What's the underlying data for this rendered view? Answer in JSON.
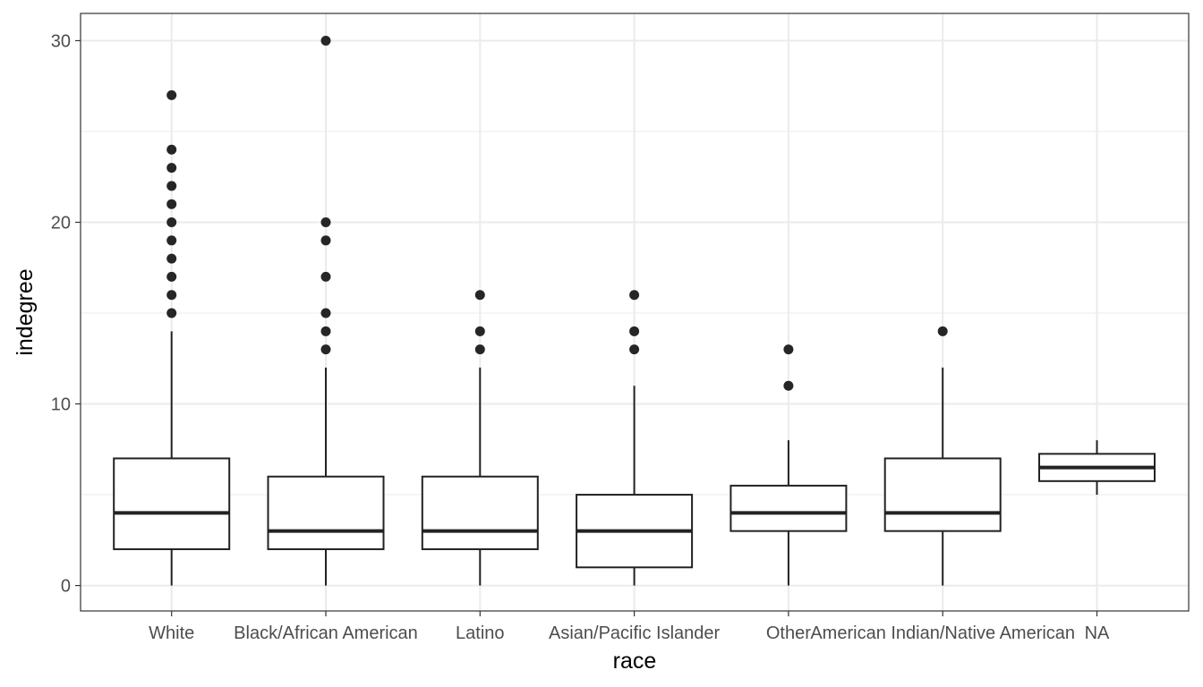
{
  "chart_data": {
    "type": "boxplot",
    "title": "",
    "xlabel": "race",
    "ylabel": "indegree",
    "ylim": [
      -1.4,
      31.5
    ],
    "y_ticks": [
      0,
      10,
      20,
      30
    ],
    "y_minor_ticks": [
      5,
      15,
      25
    ],
    "grid": true,
    "legend": "none",
    "colors": {
      "box_stroke": "#222222",
      "outlier": "#262626",
      "grid": "#ebebeb",
      "panel_border": "#333333"
    },
    "categories": [
      "White",
      "Black/African American",
      "Latino",
      "Asian/Pacific Islander",
      "Other",
      "American Indian/Native American",
      "NA"
    ],
    "boxes": [
      {
        "category": "White",
        "min": 0,
        "q1": 2,
        "median": 4,
        "q3": 7,
        "max": 14,
        "outliers": [
          15,
          16,
          17,
          18,
          19,
          20,
          21,
          22,
          23,
          24,
          27
        ]
      },
      {
        "category": "Black/African American",
        "min": 0,
        "q1": 2,
        "median": 3,
        "q3": 6,
        "max": 12,
        "outliers": [
          13,
          14,
          15,
          17,
          19,
          20,
          30
        ]
      },
      {
        "category": "Latino",
        "min": 0,
        "q1": 2,
        "median": 3,
        "q3": 6,
        "max": 12,
        "outliers": [
          13,
          14,
          16
        ]
      },
      {
        "category": "Asian/Pacific Islander",
        "min": 0,
        "q1": 1,
        "median": 3,
        "q3": 5,
        "max": 11,
        "outliers": [
          13,
          14,
          16
        ]
      },
      {
        "category": "Other",
        "min": 0,
        "q1": 3,
        "median": 4,
        "q3": 5.5,
        "max": 8,
        "outliers": [
          11,
          13
        ]
      },
      {
        "category": "American Indian/Native American",
        "min": 0,
        "q1": 3,
        "median": 4,
        "q3": 7,
        "max": 12,
        "outliers": [
          14
        ]
      },
      {
        "category": "NA",
        "min": 5,
        "q1": 5.75,
        "median": 6.5,
        "q3": 7.25,
        "max": 8,
        "outliers": []
      }
    ]
  }
}
